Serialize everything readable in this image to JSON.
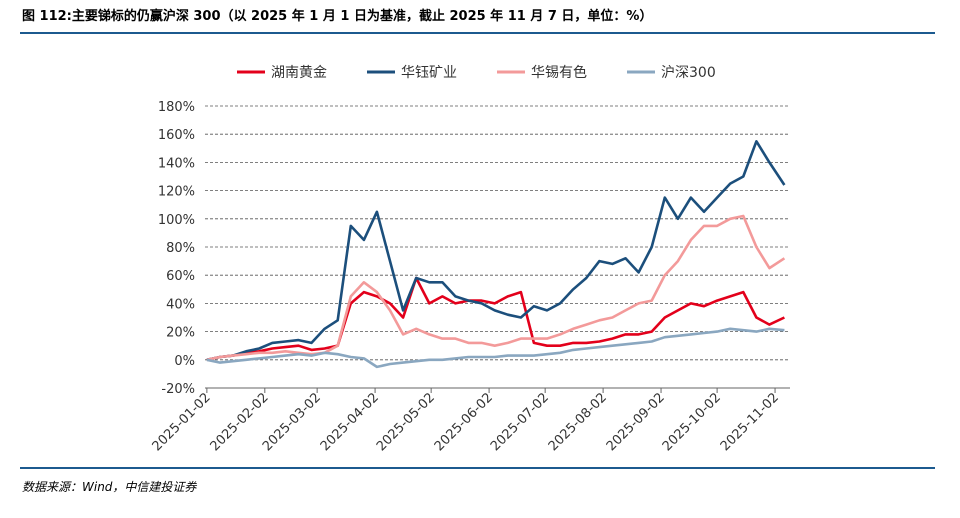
{
  "chart_data": {
    "type": "line",
    "title": "图 112:主要锑标的仍赢沪深 300（以 2025 年 1 月 1 日为基准，截止 2025 年 11 月 7 日，单位：%）",
    "source": "数据来源：Wind，中信建投证券",
    "x": [
      "2025-01-02",
      "2025-01-09",
      "2025-01-16",
      "2025-01-23",
      "2025-01-30",
      "2025-02-06",
      "2025-02-13",
      "2025-02-20",
      "2025-02-27",
      "2025-03-06",
      "2025-03-13",
      "2025-03-20",
      "2025-03-27",
      "2025-04-03",
      "2025-04-10",
      "2025-04-17",
      "2025-04-24",
      "2025-05-01",
      "2025-05-08",
      "2025-05-15",
      "2025-05-22",
      "2025-05-29",
      "2025-06-05",
      "2025-06-12",
      "2025-06-19",
      "2025-06-26",
      "2025-07-03",
      "2025-07-10",
      "2025-07-17",
      "2025-07-24",
      "2025-07-31",
      "2025-08-07",
      "2025-08-14",
      "2025-08-21",
      "2025-08-28",
      "2025-09-04",
      "2025-09-11",
      "2025-09-18",
      "2025-09-25",
      "2025-10-02",
      "2025-10-09",
      "2025-10-16",
      "2025-10-23",
      "2025-10-30",
      "2025-11-07"
    ],
    "series": [
      {
        "name": "湖南黄金",
        "color": "#e3001b",
        "values": [
          0,
          2,
          3,
          5,
          6,
          8,
          9,
          10,
          7,
          8,
          10,
          40,
          48,
          45,
          40,
          30,
          58,
          40,
          45,
          40,
          42,
          42,
          40,
          45,
          48,
          12,
          10,
          10,
          12,
          12,
          13,
          15,
          18,
          18,
          20,
          30,
          35,
          40,
          38,
          42,
          45,
          48,
          30,
          25,
          30
        ]
      },
      {
        "name": "华钰矿业",
        "color": "#1c4f7c",
        "values": [
          0,
          2,
          3,
          6,
          8,
          12,
          13,
          14,
          12,
          22,
          28,
          95,
          85,
          105,
          70,
          35,
          58,
          55,
          55,
          45,
          42,
          40,
          35,
          32,
          30,
          38,
          35,
          40,
          50,
          58,
          70,
          68,
          72,
          62,
          80,
          115,
          100,
          115,
          105,
          115,
          125,
          130,
          155,
          140,
          124
        ]
      },
      {
        "name": "华锡有色",
        "color": "#f39a9a",
        "values": [
          0,
          2,
          3,
          4,
          5,
          5,
          6,
          5,
          4,
          5,
          10,
          45,
          55,
          48,
          35,
          18,
          22,
          18,
          15,
          15,
          12,
          12,
          10,
          12,
          15,
          15,
          15,
          18,
          22,
          25,
          28,
          30,
          35,
          40,
          42,
          60,
          70,
          85,
          95,
          95,
          100,
          102,
          80,
          65,
          72
        ]
      },
      {
        "name": "沪深300",
        "color": "#8aa7c0",
        "values": [
          0,
          -2,
          -1,
          0,
          1,
          2,
          3,
          4,
          3,
          5,
          4,
          2,
          1,
          -5,
          -3,
          -2,
          -1,
          0,
          0,
          1,
          2,
          2,
          2,
          3,
          3,
          3,
          4,
          5,
          7,
          8,
          9,
          10,
          11,
          12,
          13,
          16,
          17,
          18,
          19,
          20,
          22,
          21,
          20,
          22,
          21
        ]
      }
    ],
    "xlim": [
      "2025-01-01",
      "2025-11-10"
    ],
    "xticks": [
      "2025-01-02",
      "2025-02-02",
      "2025-03-02",
      "2025-04-02",
      "2025-05-02",
      "2025-06-02",
      "2025-07-02",
      "2025-08-02",
      "2025-09-02",
      "2025-10-02",
      "2025-11-02"
    ],
    "ylim": [
      -20,
      180
    ],
    "yticks": [
      {
        "value": -20,
        "label": "-20%"
      },
      {
        "value": 0,
        "label": "0%"
      },
      {
        "value": 20,
        "label": "20%"
      },
      {
        "value": 40,
        "label": "40%"
      },
      {
        "value": 60,
        "label": "60%"
      },
      {
        "value": 80,
        "label": "80%"
      },
      {
        "value": 100,
        "label": "100%"
      },
      {
        "value": 120,
        "label": "120%"
      },
      {
        "value": 140,
        "label": "140%"
      },
      {
        "value": 160,
        "label": "160%"
      },
      {
        "value": 180,
        "label": "180%"
      }
    ],
    "grid": true,
    "legend": "top"
  }
}
